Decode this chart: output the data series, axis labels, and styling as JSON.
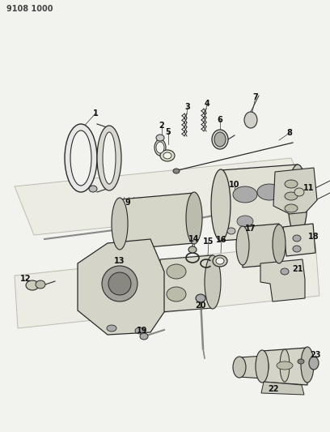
{
  "title_code": "9108 1000",
  "bg_color": "#f2f2ee",
  "line_color": "#2a2a2a",
  "fig_w": 4.08,
  "fig_h": 5.33,
  "dpi": 100
}
